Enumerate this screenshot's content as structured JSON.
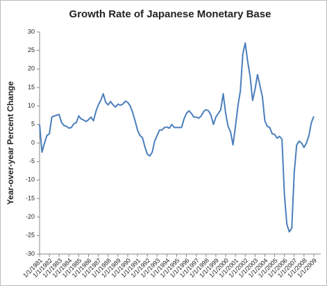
{
  "chart_data": {
    "type": "line",
    "title": "Growth Rate of Japanese Monetary Base",
    "y_label": "Year-over-year Percent Change",
    "categories": [
      "1/1/1981",
      null,
      null,
      null,
      "1/1/1982",
      null,
      null,
      null,
      "1/1/1983",
      null,
      null,
      null,
      "1/1/1984",
      null,
      null,
      null,
      "1/1/1985",
      null,
      null,
      null,
      "1/1/1986",
      null,
      null,
      null,
      "1/1/1987",
      null,
      null,
      null,
      "1/1/1988",
      null,
      null,
      null,
      "1/1/1989",
      null,
      null,
      null,
      "1/1/1990",
      null,
      null,
      null,
      "1/1/1991",
      null,
      null,
      null,
      "1/1/1992",
      null,
      null,
      null,
      "1/1/1993",
      null,
      null,
      null,
      "1/1/1994",
      null,
      null,
      null,
      "1/1/1995",
      null,
      null,
      null,
      "1/1/1996",
      null,
      null,
      null,
      "1/1/1997",
      null,
      null,
      null,
      "1/1/1998",
      null,
      null,
      null,
      "1/1/1999",
      null,
      null,
      null,
      "1/1/2000",
      null,
      null,
      null,
      "1/1/2001",
      null,
      null,
      null,
      "1/1/2002",
      null,
      null,
      null,
      "1/1/2003",
      null,
      null,
      null,
      "1/1/2004",
      null,
      null,
      null,
      "1/1/2005",
      null,
      null,
      null,
      "1/1/2006",
      null,
      null,
      null,
      "1/1/2007",
      null,
      null,
      null,
      "1/1/2008",
      null,
      null,
      null,
      "1/1/2009"
    ],
    "values": [
      5,
      -2.5,
      0,
      2,
      2.5,
      7,
      7.3,
      7.5,
      7.7,
      5.5,
      4.7,
      4.5,
      4,
      4.2,
      5.2,
      5.5,
      7.3,
      6.5,
      6.2,
      5.8,
      6.3,
      7,
      6,
      8.5,
      10.3,
      11.5,
      13.3,
      11,
      10.3,
      11.2,
      10.3,
      9.7,
      10.5,
      10.2,
      10.5,
      11.3,
      11,
      10,
      8.3,
      6,
      3.5,
      2,
      1.5,
      -1,
      -3,
      -3.5,
      -2.5,
      0.5,
      2,
      3.5,
      3.5,
      4.2,
      4.3,
      4,
      5,
      4.2,
      4.2,
      4.2,
      4.2,
      6.5,
      8,
      8.7,
      8,
      7,
      7,
      6.7,
      7.3,
      8.5,
      9,
      8.7,
      7.5,
      5,
      7,
      8,
      9,
      13.3,
      8,
      4.5,
      3,
      -0.5,
      4.5,
      10,
      14,
      24,
      27,
      22,
      18,
      11.5,
      14.5,
      18.5,
      15.5,
      12.5,
      6,
      4.5,
      4.2,
      2.5,
      2.3,
      1.3,
      1.8,
      1,
      -14,
      -22,
      -24,
      -23,
      -8,
      -0.5,
      0.5,
      0,
      -1.2,
      0,
      2,
      5.5,
      7.2
    ],
    "color": "#4a7ebb",
    "ylim": [
      -30,
      30
    ],
    "yticks": [
      -30,
      -25,
      -20,
      -15,
      -10,
      -5,
      0,
      5,
      10,
      15,
      20,
      25,
      30
    ],
    "grid": false
  }
}
